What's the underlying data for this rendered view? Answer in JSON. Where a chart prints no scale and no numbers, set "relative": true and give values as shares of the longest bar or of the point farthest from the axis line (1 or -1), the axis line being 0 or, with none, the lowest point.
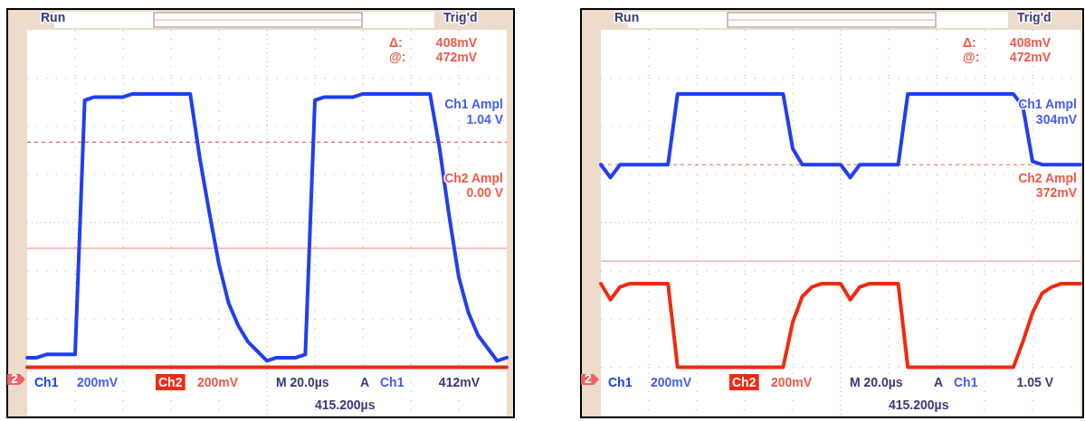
{
  "chart_data": [
    {
      "type": "line",
      "relative": true,
      "grid": true,
      "legend": "bottom",
      "categories": [
        null,
        null,
        null,
        null,
        null,
        null,
        null,
        null,
        null,
        null,
        null,
        null,
        null,
        null,
        null,
        null,
        null,
        null,
        null,
        null,
        null,
        null,
        null,
        null,
        null,
        null,
        null,
        null,
        null,
        null,
        null,
        null,
        null,
        null,
        null,
        null,
        null,
        null,
        null,
        null,
        null,
        null,
        null,
        null,
        null,
        null,
        null,
        null,
        null,
        null,
        null
      ],
      "series": [
        {
          "name": "Ch1",
          "color": "#1f3ff0",
          "values": [
            0.18,
            0.18,
            0.19,
            0.19,
            0.19,
            0.19,
            0.98,
            0.99,
            0.99,
            0.99,
            0.99,
            1,
            1,
            1,
            1,
            1,
            1,
            1,
            0.8,
            0.63,
            0.47,
            0.35,
            0.28,
            0.23,
            0.2,
            0.17,
            0.18,
            0.18,
            0.18,
            0.19,
            0.98,
            0.99,
            0.99,
            0.99,
            0.99,
            1,
            1,
            1,
            1,
            1,
            1,
            1,
            1,
            0.83,
            0.62,
            0.43,
            0.32,
            0.25,
            0.21,
            0.17,
            0.18
          ]
        },
        {
          "name": "Ch2",
          "color": "#f02a10",
          "values": [
            0.15,
            0.15,
            0.15,
            0.15,
            0.15,
            0.15,
            0.15,
            0.15,
            0.15,
            0.15,
            0.15,
            0.15,
            0.15,
            0.15,
            0.15,
            0.15,
            0.15,
            0.15,
            0.15,
            0.15,
            0.15,
            0.15,
            0.15,
            0.15,
            0.15,
            0.15,
            0.15,
            0.15,
            0.15,
            0.15,
            0.15,
            0.15,
            0.15,
            0.15,
            0.15,
            0.15,
            0.15,
            0.15,
            0.15,
            0.15,
            0.15,
            0.15,
            0.15,
            0.15,
            0.15,
            0.15,
            0.15,
            0.15,
            0.15,
            0.15,
            0.15
          ]
        }
      ],
      "ref_lines": [
        {
          "axis": "y",
          "value": 0.85,
          "color": "#f06050",
          "line_style": "dashed"
        },
        {
          "axis": "y",
          "value": 0.52,
          "color": "#f4a0a0",
          "line_style": "solid"
        }
      ],
      "annotations": [
        "Run",
        "Trig'd",
        "Δ:",
        "408mV",
        "@:",
        "472mV",
        "Ch1 Ampl",
        "1.04 V",
        "Ch2 Ampl",
        "0.00 V",
        "200mV",
        "200mV",
        "M 20.0µs",
        "A",
        "412mV",
        "415.200µs",
        "2",
        "Ch1"
      ]
    },
    {
      "type": "line",
      "relative": true,
      "grid": true,
      "legend": "bottom",
      "categories": [
        null,
        null,
        null,
        null,
        null,
        null,
        null,
        null,
        null,
        null,
        null,
        null,
        null,
        null,
        null,
        null,
        null,
        null,
        null,
        null,
        null,
        null,
        null,
        null,
        null,
        null,
        null,
        null,
        null,
        null,
        null,
        null,
        null,
        null,
        null,
        null,
        null,
        null,
        null,
        null,
        null,
        null,
        null,
        null,
        null,
        null,
        null,
        null,
        null,
        null,
        null
      ],
      "series": [
        {
          "name": "Ch1",
          "color": "#1f3ff0",
          "values": [
            0.78,
            0.74,
            0.78,
            0.78,
            0.78,
            0.78,
            0.78,
            0.78,
            1,
            1,
            1,
            1,
            1,
            1,
            1,
            1,
            1,
            1,
            1,
            1,
            0.83,
            0.78,
            0.78,
            0.78,
            0.78,
            0.78,
            0.74,
            0.78,
            0.78,
            0.78,
            0.78,
            0.78,
            1,
            1,
            1,
            1,
            1,
            1,
            1,
            1,
            1,
            1,
            1,
            1,
            0.96,
            0.79,
            0.78,
            0.78,
            0.78,
            0.78,
            0.78
          ]
        },
        {
          "name": "Ch2",
          "color": "#f02a10",
          "values": [
            0.41,
            0.36,
            0.4,
            0.41,
            0.41,
            0.41,
            0.41,
            0.41,
            0.15,
            0.15,
            0.15,
            0.15,
            0.15,
            0.15,
            0.15,
            0.15,
            0.15,
            0.15,
            0.15,
            0.15,
            0.29,
            0.37,
            0.4,
            0.41,
            0.41,
            0.41,
            0.36,
            0.4,
            0.41,
            0.41,
            0.41,
            0.41,
            0.15,
            0.15,
            0.15,
            0.15,
            0.15,
            0.15,
            0.15,
            0.15,
            0.15,
            0.15,
            0.15,
            0.15,
            0.23,
            0.32,
            0.38,
            0.4,
            0.41,
            0.41,
            0.41
          ]
        }
      ],
      "ref_lines": [
        {
          "axis": "y",
          "value": 0.78,
          "color": "#f06050",
          "line_style": "dashed"
        },
        {
          "axis": "y",
          "value": 0.48,
          "color": "#f4a0a0",
          "line_style": "solid"
        }
      ],
      "annotations": [
        "Run",
        "Trig'd",
        "Δ:",
        "408mV",
        "@:",
        "472mV",
        "Ch1 Ampl",
        "304mV",
        "Ch2 Ampl",
        "372mV",
        "200mV",
        "200mV",
        "M 20.0µs",
        "A",
        "1.05 V",
        "415.200µs",
        "2",
        "Ch1"
      ]
    }
  ]
}
